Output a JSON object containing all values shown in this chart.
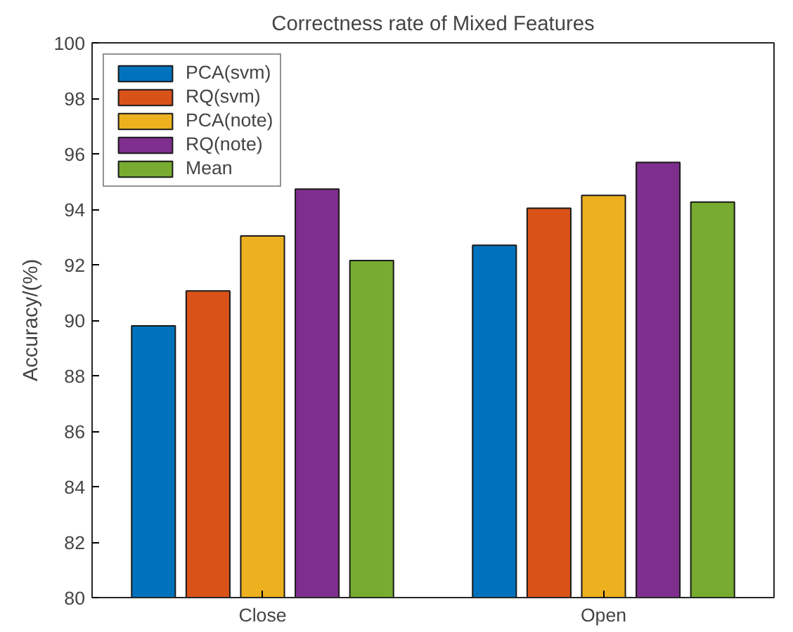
{
  "chart_data": {
    "type": "bar",
    "title": "Correctness rate of Mixed Features",
    "ylabel": "Accuracy/(%)",
    "categories": [
      "Close",
      "Open"
    ],
    "series": [
      {
        "name": "PCA(svm)",
        "color": "#0072bd",
        "values": [
          89.8,
          92.7
        ]
      },
      {
        "name": "RQ(svm)",
        "color": "#d95319",
        "values": [
          91.06,
          94.04
        ]
      },
      {
        "name": "PCA(note)",
        "color": "#edb120",
        "values": [
          93.04,
          94.5
        ]
      },
      {
        "name": "RQ(note)",
        "color": "#7e2f8e",
        "values": [
          94.73,
          95.69
        ]
      },
      {
        "name": "Mean",
        "color": "#77ac30",
        "values": [
          92.15,
          94.26
        ]
      }
    ],
    "ylim": [
      80,
      100
    ],
    "yticks": [
      80,
      82,
      84,
      86,
      88,
      90,
      92,
      94,
      96,
      98,
      100
    ],
    "grid": false,
    "legend": "top left"
  }
}
